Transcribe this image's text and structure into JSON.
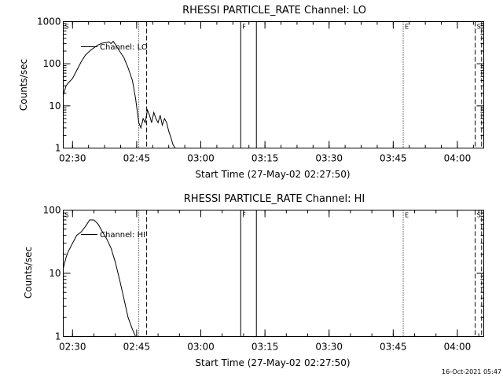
{
  "footer_date": "16-Oct-2021 05:47",
  "colors": {
    "background": "#ffffff",
    "ink": "#000000"
  },
  "chart_data": [
    {
      "type": "line",
      "title": "RHESSI PARTICLE_RATE Channel: LO",
      "xlabel": "Start Time (27-May-02 02:27:50)",
      "ylabel": "Counts/sec",
      "yscale": "log",
      "ylim": [
        1,
        1000
      ],
      "xlim": [
        "02:27:50",
        "04:06:10"
      ],
      "xticks": [
        "02:30",
        "02:45",
        "03:00",
        "03:15",
        "03:30",
        "03:45",
        "04:00"
      ],
      "yticks": [
        "1",
        "10",
        "100",
        "1000"
      ],
      "legend": "Channel: LO",
      "markers": [
        {
          "label": "S",
          "time": "02:27:50",
          "style": "none"
        },
        {
          "label": "",
          "time": "02:45:30",
          "style": "dotted"
        },
        {
          "label": "",
          "time": "02:47:20",
          "style": "dashed"
        },
        {
          "label": "F",
          "time": "03:09:20",
          "style": "solid"
        },
        {
          "label": "",
          "time": "03:13:00",
          "style": "solid"
        },
        {
          "label": "E",
          "time": "03:47:20",
          "style": "dotted"
        },
        {
          "label": "S",
          "time": "04:04:10",
          "style": "dashed"
        },
        {
          "label": "",
          "time": "04:05:40",
          "style": "dashed"
        }
      ],
      "series": [
        {
          "x": [
            "02:27:50",
            "02:28:30",
            "02:29:00",
            "02:30:00",
            "02:31:00",
            "02:32:00",
            "02:33:00",
            "02:34:00",
            "02:35:00",
            "02:36:00",
            "02:37:00",
            "02:38:00",
            "02:38:30",
            "02:39:00",
            "02:39:30",
            "02:40:00",
            "02:41:00",
            "02:42:00",
            "02:43:00",
            "02:44:00",
            "02:44:45",
            "02:45:30",
            "02:46:00",
            "02:46:30",
            "02:47:00",
            "02:47:30",
            "02:48:00",
            "02:48:30",
            "02:49:00",
            "02:49:30",
            "02:50:00",
            "02:50:30",
            "02:51:00",
            "02:51:30",
            "02:52:00",
            "02:52:30",
            "02:53:00",
            "02:53:30",
            "02:54:00",
            "02:54:30",
            "02:55:00",
            "02:56:00",
            "02:57:00"
          ],
          "y": [
            18,
            30,
            35,
            45,
            70,
            110,
            160,
            200,
            240,
            280,
            310,
            320,
            330,
            300,
            340,
            290,
            200,
            140,
            80,
            40,
            15,
            4,
            3,
            5,
            4,
            8,
            6,
            4,
            7,
            5,
            4,
            6,
            3.5,
            5,
            4,
            2.5,
            1.8,
            1.2,
            1,
            1,
            1,
            1,
            1
          ]
        }
      ]
    },
    {
      "type": "line",
      "title": "RHESSI PARTICLE_RATE Channel: HI",
      "xlabel": "Start Time (27-May-02 02:27:50)",
      "ylabel": "Counts/sec",
      "yscale": "log",
      "ylim": [
        1,
        100
      ],
      "xlim": [
        "02:27:50",
        "04:06:10"
      ],
      "xticks": [
        "02:30",
        "02:45",
        "03:00",
        "03:15",
        "03:30",
        "03:45",
        "04:00"
      ],
      "yticks": [
        "1",
        "10",
        "100"
      ],
      "legend": "Channel: HI",
      "markers": [
        {
          "label": "S",
          "time": "02:27:50",
          "style": "none"
        },
        {
          "label": "",
          "time": "02:45:30",
          "style": "dotted"
        },
        {
          "label": "",
          "time": "02:47:20",
          "style": "dashed"
        },
        {
          "label": "F",
          "time": "03:09:20",
          "style": "solid"
        },
        {
          "label": "",
          "time": "03:13:00",
          "style": "solid"
        },
        {
          "label": "E",
          "time": "03:47:20",
          "style": "dotted"
        },
        {
          "label": "S",
          "time": "04:04:10",
          "style": "dashed"
        },
        {
          "label": "",
          "time": "04:05:40",
          "style": "dashed"
        }
      ],
      "series": [
        {
          "x": [
            "02:27:50",
            "02:28:30",
            "02:29:00",
            "02:30:00",
            "02:31:00",
            "02:32:00",
            "02:33:00",
            "02:34:00",
            "02:35:00",
            "02:36:00",
            "02:37:00",
            "02:38:00",
            "02:39:00",
            "02:40:00",
            "02:41:00",
            "02:42:00",
            "02:43:00",
            "02:44:00",
            "02:44:45",
            "02:45:00"
          ],
          "y": [
            12,
            18,
            22,
            30,
            40,
            45,
            55,
            70,
            70,
            60,
            45,
            35,
            25,
            15,
            8,
            4,
            2,
            1.3,
            1,
            1
          ]
        }
      ]
    }
  ]
}
